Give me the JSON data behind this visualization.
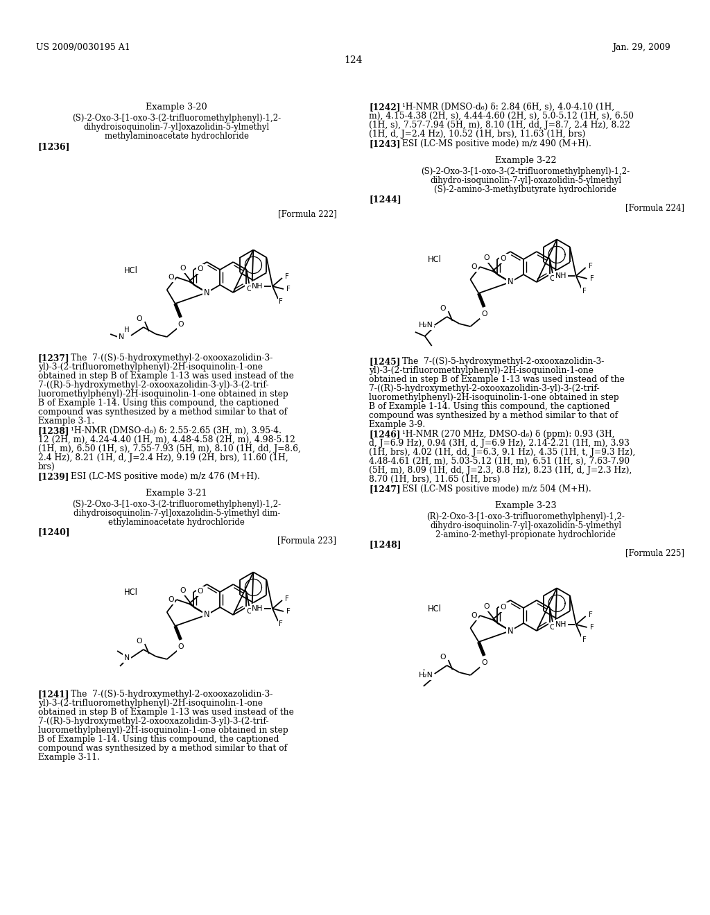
{
  "bg": "#ffffff",
  "fg": "#000000",
  "header_left": "US 2009/0030195 A1",
  "header_right": "Jan. 29, 2009",
  "page_num": "124",
  "ex320_title": "Example 3-20",
  "ex320_name1": "(S)-2-Oxo-3-[1-oxo-3-(2-trifluoromethylphenyl)-1,2-",
  "ex320_name2": "dihydroisoquinolin-7-yl]oxazolidin-5-ylmethyl",
  "ex320_name3": "methylaminoacetate hydrochloride",
  "ex320_ref": "[1236]",
  "ex320_formula": "[Formula 222]",
  "p1237a": "[1237]",
  "p1237b": "The  7-((S)-5-hydroxymethyl-2-oxooxazolidin-3-",
  "p1237c": "yl)-3-(2-trifluoromethylphenyl)-2H-isoquinolin-1-one",
  "p1237d": "obtained in step B of Example 1-13 was used instead of the",
  "p1237e": "7-((R)-5-hydroxymethyl-2-oxooxazolidin-3-yl)-3-(2-trif-",
  "p1237f": "luoromethylphenyl)-2H-isoquinolin-1-one obtained in step",
  "p1237g": "B of Example 1-14. Using this compound, the captioned",
  "p1237h": "compound was synthesized by a method similar to that of",
  "p1237i": "Example 3-1.",
  "p1238a": "[1238]",
  "p1238b": "¹H-NMR (DMSO-d₆) δ: 2.55-2.65 (3H, m), 3.95-4.",
  "p1238c": "12 (2H, m), 4.24-4.40 (1H, m), 4.48-4.58 (2H, m), 4.98-5.12",
  "p1238d": "(1H, m), 6.50 (1H, s), 7.55-7.93 (5H, m), 8.10 (1H, dd, J=8.6,",
  "p1238e": "2.4 Hz), 8.21 (1H, d, J=2.4 Hz), 9.19 (2H, brs), 11.60 (1H,",
  "p1238f": "brs)",
  "p1239a": "[1239]",
  "p1239b": "ESI (LC-MS positive mode) m/z 476 (M+H).",
  "ex321_title": "Example 3-21",
  "ex321_name1": "(S)-2-Oxo-3-[1-oxo-3-(2-trifluoromethylphenyl)-1,2-",
  "ex321_name2": "dihydroisoquinolin-7-yl]oxazolidin-5-ylmethyl dim-",
  "ex321_name3": "ethylaminoacetate hydrochloride",
  "ex321_ref": "[1240]",
  "ex321_formula": "[Formula 223]",
  "p1241a": "[1241]",
  "p1241b": "The  7-((S)-5-hydroxymethyl-2-oxooxazolidin-3-",
  "p1241c": "yl)-3-(2-trifluoromethylphenyl)-2H-isoquinolin-1-one",
  "p1241d": "obtained in step B of Example 1-13 was used instead of the",
  "p1241e": "7-((R)-5-hydroxymethyl-2-oxooxazolidin-3-yl)-3-(2-trif-",
  "p1241f": "luoromethylphenyl)-2H-isoquinolin-1-one obtained in step",
  "p1241g": "B of Example 1-14. Using this compound, the captioned",
  "p1241h": "compound was synthesized by a method similar to that of",
  "p1241i": "Example 3-11.",
  "p1242a": "[1242]",
  "p1242b": "¹H-NMR (DMSO-d₆) δ: 2.84 (6H, s), 4.0-4.10 (1H,",
  "p1242c": "m), 4.15-4.38 (2H, s), 4.44-4.60 (2H, s), 5.0-5.12 (1H, s), 6.50",
  "p1242d": "(1H, s), 7.57-7.94 (5H, m), 8.10 (1H, dd, J=8.7, 2.4 Hz), 8.22",
  "p1242e": "(1H, d, J=2.4 Hz), 10.52 (1H, brs), 11.63 (1H, brs)",
  "p1243a": "[1243]",
  "p1243b": "ESI (LC-MS positive mode) m/z 490 (M+H).",
  "ex322_title": "Example 3-22",
  "ex322_name1": "(S)-2-Oxo-3-[1-oxo-3-(2-trifluoromethylphenyl)-1,2-",
  "ex322_name2": "dihydro-isoquinolin-7-yl]-oxazolidin-5-ylmethyl",
  "ex322_name3": "(S)-2-amino-3-methylbutyrate hydrochloride",
  "ex322_ref": "[1244]",
  "ex322_formula": "[Formula 224]",
  "p1245a": "[1245]",
  "p1245b": "The  7-((S)-5-hydroxymethyl-2-oxooxazolidin-3-",
  "p1245c": "yl)-3-(2-trifluoromethylphenyl)-2H-isoquinolin-1-one",
  "p1245d": "obtained in step B of Example 1-13 was used instead of the",
  "p1245e": "7-((R)-5-hydroxymethyl-2-oxooxazolidin-3-yl)-3-(2-trif-",
  "p1245f": "luoromethylphenyl)-2H-isoquinolin-1-one obtained in step",
  "p1245g": "B of Example 1-14. Using this compound, the captioned",
  "p1245h": "compound was synthesized by a method similar to that of",
  "p1245i": "Example 3-9.",
  "p1246a": "[1246]",
  "p1246b": "¹H-NMR (270 MHz, DMSO-d₆) δ (ppm): 0.93 (3H,",
  "p1246c": "d, J=6.9 Hz), 0.94 (3H, d, J=6.9 Hz), 2.14-2.21 (1H, m), 3.93",
  "p1246d": "(1H, brs), 4.02 (1H, dd, J=6.3, 9.1 Hz), 4.35 (1H, t, J=9.3 Hz),",
  "p1246e": "4.48-4.61 (2H, m), 5.03-5.12 (1H, m), 6.51 (1H, s), 7.63-7.90",
  "p1246f": "(5H, m), 8.09 (1H, dd, J=2.3, 8.8 Hz), 8.23 (1H, d, J=2.3 Hz),",
  "p1246g": "8.70 (1H, brs), 11.65 (1H, brs)",
  "p1247a": "[1247]",
  "p1247b": "ESI (LC-MS positive mode) m/z 504 (M+H).",
  "ex323_title": "Example 3-23",
  "ex323_name1": "(R)-2-Oxo-3-[1-oxo-3-trifluoromethylphenyl)-1,2-",
  "ex323_name2": "dihydro-isoquinolin-7-yl]-oxazolidin-5-ylmethyl",
  "ex323_name3": "2-amino-2-methyl-propionate hydrochloride",
  "ex323_ref": "[1248]",
  "ex323_formula": "[Formula 225]"
}
